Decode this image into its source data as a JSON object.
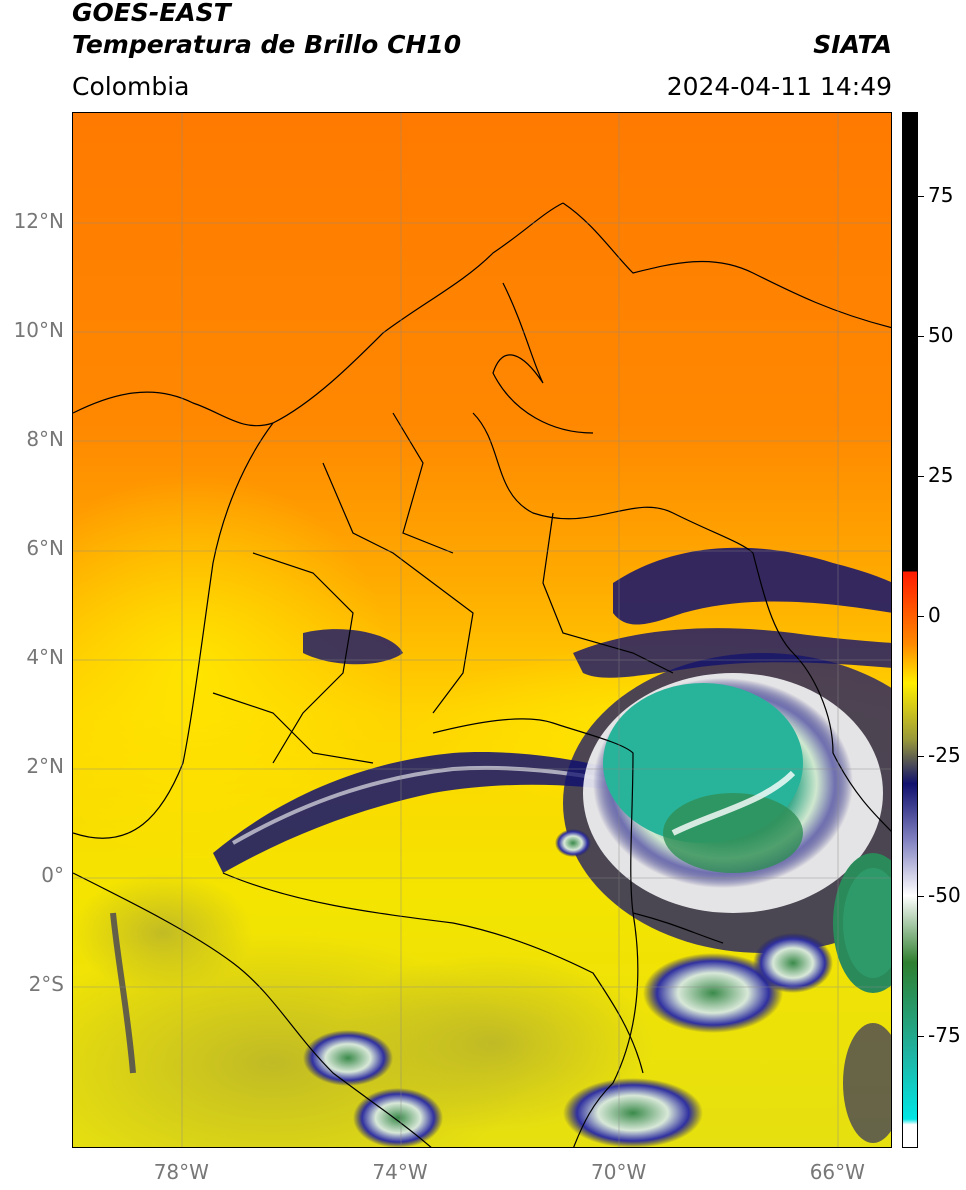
{
  "header": {
    "satellite": "GOES-EAST",
    "product": "Temperatura de Brillo CH10",
    "region": "Colombia",
    "agency": "SIATA",
    "datetime": "2024-04-11 14:49"
  },
  "axes": {
    "lat_ticks": [
      {
        "value": 12,
        "label": "12°N"
      },
      {
        "value": 10,
        "label": "10°N"
      },
      {
        "value": 8,
        "label": "8°N"
      },
      {
        "value": 6,
        "label": "6°N"
      },
      {
        "value": 4,
        "label": "4°N"
      },
      {
        "value": 2,
        "label": "2°N"
      },
      {
        "value": 0,
        "label": "0°"
      },
      {
        "value": -2,
        "label": "2°S"
      }
    ],
    "lon_ticks": [
      {
        "value": -78,
        "label": "78°W"
      },
      {
        "value": -74,
        "label": "74°W"
      },
      {
        "value": -70,
        "label": "70°W"
      },
      {
        "value": -66,
        "label": "66°W"
      }
    ],
    "lat_range": [
      -5.0,
      14.0
    ],
    "lon_range": [
      -80.0,
      -65.0
    ]
  },
  "colorbar": {
    "ticks": [
      {
        "value": 75,
        "label": "75"
      },
      {
        "value": 50,
        "label": "50"
      },
      {
        "value": 25,
        "label": "25"
      },
      {
        "value": 0,
        "label": "0"
      },
      {
        "value": -25,
        "label": "-25"
      },
      {
        "value": -50,
        "label": "-50"
      },
      {
        "value": -75,
        "label": "-75"
      }
    ],
    "range": [
      -95,
      90
    ],
    "colors": {
      "black": "#000000",
      "red": "#ff1a00",
      "orange": "#ff8a00",
      "yellow": "#ffee00",
      "olive": "#9a9a3a",
      "navy": "#11116e",
      "white": "#ffffff",
      "green": "#2f7f2f",
      "teal": "#20b2a0",
      "cyan": "#00e5e5"
    }
  }
}
